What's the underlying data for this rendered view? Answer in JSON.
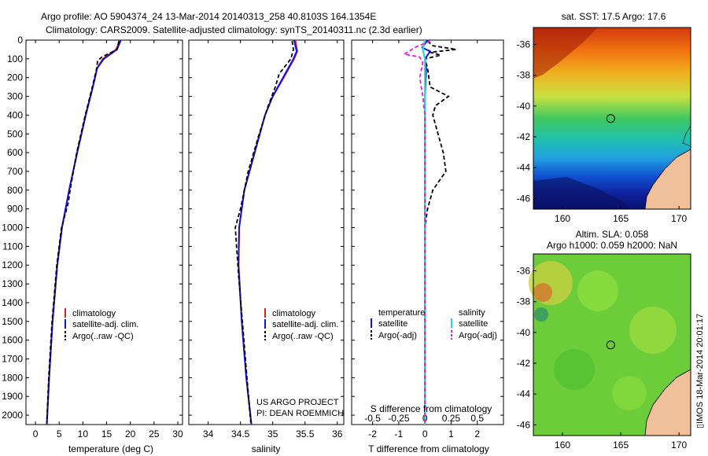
{
  "header": {
    "line1": "Argo profile: AO 5904374_24 13-Mar-2014 20140313_258 40.8103S 164.1354E",
    "line2": "Climatology: CARS2009. Satellite-adjusted climatology: synTS_20140311.nc (2.3d earlier)"
  },
  "colors": {
    "climatology": "#e02020",
    "satellite": "#1010e0",
    "argo": "#000000",
    "sal_satellite": "#20d8e8",
    "sal_argo": "#e020e0"
  },
  "depth_axis": {
    "ticks": [
      "0",
      "100",
      "200",
      "300",
      "400",
      "500",
      "600",
      "700",
      "800",
      "900",
      "1000",
      "1100",
      "1200",
      "1300",
      "1400",
      "1500",
      "1600",
      "1700",
      "1800",
      "1900",
      "2000"
    ]
  },
  "legend_profile": {
    "climatology": "climatology",
    "satellite": "satellite-adj. clim.",
    "argo": "Argo(..raw -QC)"
  },
  "legend_diff": {
    "temperature": "temperature",
    "salinity": "salinity",
    "satellite": "satellite",
    "argo": "Argo(-adj)"
  },
  "project": {
    "line1": "US ARGO PROJECT",
    "line2": "PI: DEAN ROEMMICH"
  },
  "diff_s_title": "S difference from climatology",
  "footer": "▯IMOS 18-Mar-2014 20:01:17",
  "chart_data": [
    {
      "type": "line",
      "title": "",
      "xlabel": "temperature (deg C)",
      "ylabel": "",
      "xlim": [
        -2,
        31
      ],
      "ylim": [
        2050,
        0
      ],
      "xticks": [
        "0",
        "5",
        "10",
        "15",
        "20",
        "25",
        "30"
      ],
      "series": [
        {
          "name": "climatology",
          "depth": [
            0,
            50,
            100,
            150,
            250,
            400,
            600,
            800,
            1000,
            1200,
            1500,
            1800,
            2050
          ],
          "values": [
            17.8,
            17.0,
            14.2,
            13.0,
            12.1,
            10.6,
            8.8,
            7.1,
            5.6,
            4.6,
            3.6,
            2.9,
            2.4
          ]
        },
        {
          "name": "satellite-adj. clim.",
          "depth": [
            0,
            50,
            100,
            150,
            250,
            400,
            600,
            800,
            1000,
            1200,
            1500,
            1800,
            2050
          ],
          "values": [
            18.0,
            17.2,
            14.4,
            13.0,
            12.1,
            10.6,
            8.8,
            7.1,
            5.6,
            4.6,
            3.6,
            2.9,
            2.4
          ]
        },
        {
          "name": "Argo(..raw -QC)",
          "depth": [
            5,
            50,
            90,
            110,
            150,
            250,
            400,
            600,
            800,
            870,
            1000,
            1200,
            1500,
            1800,
            2040
          ],
          "values": [
            17.6,
            17.2,
            14.0,
            13.1,
            12.9,
            12.0,
            10.5,
            8.7,
            7.3,
            6.9,
            5.5,
            4.5,
            3.5,
            2.8,
            2.4
          ]
        }
      ]
    },
    {
      "type": "line",
      "title": "",
      "xlabel": "salinity",
      "ylabel": "",
      "xlim": [
        33.7,
        36.1
      ],
      "ylim": [
        2050,
        0
      ],
      "xticks": [
        "34",
        "34.5",
        "35",
        "35.5",
        "36"
      ],
      "series": [
        {
          "name": "climatology",
          "depth": [
            0,
            60,
            100,
            200,
            300,
            400,
            600,
            800,
            1000,
            1200,
            1500,
            1800,
            2050
          ],
          "values": [
            35.35,
            35.38,
            35.33,
            35.17,
            35.0,
            34.88,
            34.72,
            34.56,
            34.48,
            34.47,
            34.52,
            34.59,
            34.67
          ]
        },
        {
          "name": "satellite-adj. clim.",
          "depth": [
            0,
            60,
            100,
            200,
            300,
            400,
            600,
            800,
            1000,
            1200,
            1500,
            1800,
            2050
          ],
          "values": [
            35.33,
            35.37,
            35.32,
            35.16,
            35.0,
            34.88,
            34.72,
            34.56,
            34.48,
            34.47,
            34.52,
            34.59,
            34.67
          ]
        },
        {
          "name": "Argo(..raw -QC)",
          "depth": [
            5,
            50,
            100,
            180,
            250,
            350,
            500,
            700,
            900,
            1000,
            1100,
            1250,
            1500,
            1800,
            2040
          ],
          "values": [
            35.3,
            35.32,
            35.28,
            35.1,
            35.04,
            34.93,
            34.79,
            34.62,
            34.5,
            34.42,
            34.44,
            34.47,
            34.53,
            34.6,
            34.66
          ]
        }
      ]
    },
    {
      "type": "line",
      "title": "",
      "xlabel": "T difference from climatology",
      "ylabel": "",
      "xlim": [
        -2.8,
        3.0
      ],
      "ylim": [
        2050,
        0
      ],
      "xticks": [
        "-2",
        "-1",
        "0",
        "1",
        "2"
      ],
      "x2label": "S difference from climatology",
      "x2ticks": [
        "-0.5",
        "-0.25",
        "0",
        "0.25",
        "0.5"
      ],
      "series": [
        {
          "name": "temperature satellite",
          "depth": [
            0,
            40,
            60,
            100,
            150,
            300,
            600,
            1000,
            1500,
            2050
          ],
          "values": [
            0.1,
            -0.1,
            0.2,
            0.0,
            0.05,
            0.0,
            0.0,
            0.0,
            0.0,
            0.0
          ]
        },
        {
          "name": "temperature Argo(-adj)",
          "depth": [
            5,
            30,
            50,
            65,
            80,
            100,
            150,
            250,
            300,
            350,
            400,
            500,
            600,
            700,
            760,
            800,
            900,
            1000,
            1500,
            2040
          ],
          "values": [
            0.1,
            0.3,
            1.2,
            0.2,
            0.6,
            0.0,
            0.1,
            0.2,
            0.9,
            0.4,
            0.3,
            0.5,
            0.7,
            0.8,
            0.5,
            0.3,
            0.1,
            0.0,
            0.0,
            0.0
          ]
        },
        {
          "name": "salinity satellite",
          "depth": [
            0,
            50,
            100,
            300,
            600,
            1000,
            1500,
            2050
          ],
          "values": [
            0.0,
            -0.02,
            0.0,
            0.0,
            0.0,
            0.0,
            0.0,
            0.0
          ]
        },
        {
          "name": "salinity Argo(-adj)",
          "depth": [
            5,
            40,
            60,
            75,
            90,
            120,
            200,
            300,
            400,
            600,
            900,
            1300,
            2040
          ],
          "values": [
            0.05,
            -0.1,
            -0.15,
            -0.2,
            -0.05,
            -0.02,
            -0.05,
            -0.02,
            0.0,
            0.0,
            0.0,
            0.0,
            0.0
          ]
        }
      ]
    },
    {
      "type": "heatmap",
      "title": "sat. SST: 17.5 Argo: 17.6",
      "xlim": [
        157.5,
        171
      ],
      "ylim": [
        -46.7,
        -34.9
      ],
      "xticks": [
        "160",
        "165",
        "170"
      ],
      "yticks": [
        "-36",
        "-38",
        "-40",
        "-42",
        "-44",
        "-46"
      ],
      "argo_position": [
        164.1354,
        -40.8103
      ]
    },
    {
      "type": "heatmap",
      "title": "Altim. SLA: 0.058",
      "subtitle": "Argo h1000: 0.059 h2000: NaN",
      "xlim": [
        157.5,
        171
      ],
      "ylim": [
        -46.7,
        -34.9
      ],
      "xticks": [
        "160",
        "165",
        "170"
      ],
      "yticks": [
        "-36",
        "-38",
        "-40",
        "-42",
        "-44",
        "-46"
      ],
      "argo_position": [
        164.1354,
        -40.8103
      ]
    }
  ]
}
